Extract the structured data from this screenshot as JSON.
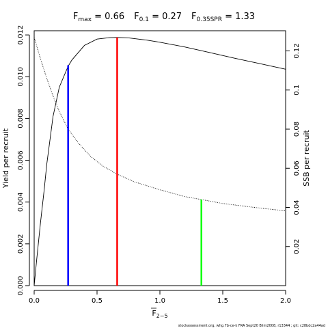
{
  "chart_data": {
    "type": "line",
    "title_parts": [
      {
        "symbol": "F",
        "sub": "max",
        "value": "0.66"
      },
      {
        "symbol": "F",
        "sub": "0.1",
        "value": "0.27"
      },
      {
        "symbol": "F",
        "sub": "0.35SPR",
        "value": "1.33"
      }
    ],
    "xlabel": {
      "symbol": "F",
      "sub": "2−5"
    },
    "ylabel": "Yield per recruit",
    "y2label": "SSB per recruit",
    "xlim": [
      0,
      2.0
    ],
    "ylim": [
      0,
      0.0122
    ],
    "y2lim": [
      0,
      0.1303
    ],
    "xticks": [
      0.0,
      0.5,
      1.0,
      1.5,
      2.0
    ],
    "xtick_labels": [
      "0.0",
      "0.5",
      "1.0",
      "1.5",
      "2.0"
    ],
    "yticks": [
      0.0,
      0.002,
      0.004,
      0.006,
      0.008,
      0.01,
      0.012
    ],
    "ytick_labels": [
      "0.000",
      "0.002",
      "0.004",
      "0.006",
      "0.008",
      "0.010",
      "0.012"
    ],
    "y2ticks": [
      0.02,
      0.04,
      0.06,
      0.08,
      0.1,
      0.12
    ],
    "y2tick_labels": [
      "0.02",
      "0.04",
      "0.06",
      "0.08",
      "0.1",
      "0.12"
    ],
    "series": [
      {
        "name": "yield",
        "axis": "left",
        "style": "solid",
        "color": "#000000",
        "x": [
          0.0,
          0.02,
          0.05,
          0.08,
          0.1,
          0.15,
          0.2,
          0.27,
          0.3,
          0.4,
          0.5,
          0.6,
          0.66,
          0.75,
          0.9,
          1.0,
          1.2,
          1.4,
          1.6,
          1.8,
          2.0
        ],
        "y": [
          0.0,
          0.00125,
          0.003,
          0.0046,
          0.0058,
          0.0081,
          0.0095,
          0.0105,
          0.0108,
          0.0115,
          0.0118,
          0.01187,
          0.01188,
          0.01186,
          0.01175,
          0.01165,
          0.01142,
          0.01115,
          0.01088,
          0.01062,
          0.01036
        ]
      },
      {
        "name": "ssb",
        "axis": "right",
        "style": "dotted",
        "color": "#000000",
        "x": [
          0.0,
          0.05,
          0.1,
          0.15,
          0.2,
          0.27,
          0.35,
          0.45,
          0.55,
          0.66,
          0.8,
          1.0,
          1.2,
          1.33,
          1.5,
          1.75,
          2.0
        ],
        "y": [
          0.127,
          0.116,
          0.106,
          0.097,
          0.089,
          0.08,
          0.073,
          0.066,
          0.061,
          0.057,
          0.053,
          0.049,
          0.0455,
          0.044,
          0.042,
          0.04,
          0.0382
        ]
      }
    ],
    "reference_lines": [
      {
        "x": 0.27,
        "axis": "left",
        "y_top": 0.01055,
        "color": "#0000ff"
      },
      {
        "x": 0.66,
        "axis": "left",
        "y_top": 0.01188,
        "color": "#ff0000"
      },
      {
        "x": 1.33,
        "axis": "right",
        "y_top": 0.044,
        "color": "#00ff00"
      }
    ],
    "grid": false,
    "legend": "none"
  },
  "footer": {
    "text": "stockassessment.org, whg.7b-ce-k  FRA  Sept20  Blim2008, r13344 ;  git:  c28bdc2a44ad"
  }
}
